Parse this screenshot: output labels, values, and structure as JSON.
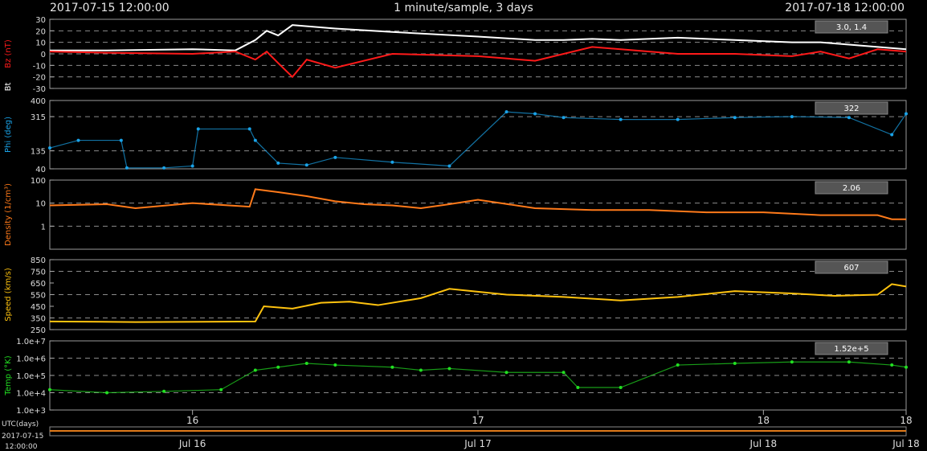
{
  "header": {
    "start": "2017-07-15 12:00:00",
    "title": "1 minute/sample, 3 days",
    "end": "2017-07-18 12:00:00"
  },
  "footer": {
    "utc_label": "UTC(days)",
    "start_date": "2017-07-15",
    "start_time": "12:00:00"
  },
  "chart_data": [
    {
      "type": "line",
      "ylabel": "Bz (nT)",
      "ylabel2": "Bt",
      "color": "#ff1a1a",
      "color2": "#ffffff",
      "value_box": "3.0, 1.4",
      "yticks": [
        "30",
        "20",
        "10",
        "0",
        "-10",
        "-20",
        "-30"
      ],
      "ylim": [
        -30,
        30
      ],
      "dashed": [
        -20,
        -10,
        0,
        10,
        20
      ],
      "series": [
        {
          "name": "Bt",
          "color": "#ffffff",
          "x": [
            0,
            0.2,
            0.5,
            0.65,
            0.72,
            0.76,
            0.8,
            0.85,
            0.9,
            1.0,
            1.2,
            1.5,
            1.7,
            1.8,
            1.9,
            2.0,
            2.2,
            2.4,
            2.6,
            2.7,
            2.8,
            2.9,
            3.0
          ],
          "y": [
            3,
            3,
            4,
            3,
            12,
            20,
            16,
            25,
            24,
            22,
            19,
            15,
            12,
            12,
            13,
            12,
            14,
            12,
            10,
            10,
            8,
            6,
            4
          ]
        },
        {
          "name": "Bz",
          "color": "#ff1a1a",
          "x": [
            0,
            0.2,
            0.5,
            0.65,
            0.72,
            0.76,
            0.8,
            0.85,
            0.9,
            1.0,
            1.2,
            1.5,
            1.7,
            1.8,
            1.9,
            2.0,
            2.2,
            2.4,
            2.6,
            2.7,
            2.8,
            2.9,
            3.0
          ],
          "y": [
            2,
            1,
            0,
            2,
            -5,
            2,
            -8,
            -20,
            -5,
            -12,
            0,
            -2,
            -6,
            0,
            6,
            4,
            0,
            0,
            -2,
            2,
            -4,
            4,
            2
          ]
        }
      ]
    },
    {
      "type": "scatter",
      "ylabel": "Phi (deg)",
      "color": "#1aa3e8",
      "value_box": "322",
      "yticks": [
        "400",
        "315",
        "135",
        "40"
      ],
      "ylim": [
        40,
        400
      ],
      "tick_values": [
        400,
        315,
        135,
        40
      ],
      "dashed": [
        315,
        135
      ],
      "series": [
        {
          "name": "Phi",
          "x": [
            0,
            0.1,
            0.25,
            0.27,
            0.4,
            0.5,
            0.52,
            0.7,
            0.72,
            0.8,
            0.9,
            1.0,
            1.2,
            1.4,
            1.6,
            1.7,
            1.8,
            2.0,
            2.2,
            2.4,
            2.6,
            2.8,
            2.95,
            3.0
          ],
          "y": [
            150,
            190,
            190,
            45,
            45,
            55,
            250,
            250,
            190,
            70,
            60,
            100,
            75,
            55,
            340,
            330,
            310,
            300,
            300,
            310,
            315,
            310,
            220,
            330
          ]
        }
      ]
    },
    {
      "type": "line",
      "ylabel": "Density (1/cm³)",
      "color": "#ff7a1a",
      "value_box": "2.06",
      "yticks": [
        "100",
        "10",
        "1"
      ],
      "scale": "log",
      "ylim": [
        0.1,
        100
      ],
      "tick_values": [
        100,
        10,
        1
      ],
      "dashed": [
        10,
        1
      ],
      "series": [
        {
          "name": "Density",
          "x": [
            0,
            0.2,
            0.3,
            0.5,
            0.7,
            0.72,
            0.8,
            0.9,
            1.0,
            1.1,
            1.2,
            1.3,
            1.4,
            1.5,
            1.7,
            1.9,
            2.1,
            2.3,
            2.5,
            2.7,
            2.9,
            2.95,
            3.0
          ],
          "y": [
            8,
            9,
            6,
            10,
            7,
            40,
            30,
            20,
            12,
            9,
            8,
            6,
            9,
            14,
            6,
            5,
            5,
            4,
            4,
            3,
            3,
            2,
            2
          ]
        }
      ]
    },
    {
      "type": "line",
      "ylabel": "Speed (km/s)",
      "color": "#ffc30f",
      "value_box": "607",
      "yticks": [
        "850",
        "750",
        "650",
        "550",
        "450",
        "350",
        "250"
      ],
      "ylim": [
        250,
        850
      ],
      "dashed": [
        750,
        550,
        350
      ],
      "series": [
        {
          "name": "Speed",
          "x": [
            0,
            0.3,
            0.6,
            0.72,
            0.75,
            0.85,
            0.95,
            1.05,
            1.15,
            1.3,
            1.4,
            1.6,
            1.8,
            2.0,
            2.2,
            2.4,
            2.6,
            2.75,
            2.9,
            2.95,
            3.0
          ],
          "y": [
            320,
            315,
            318,
            320,
            450,
            430,
            480,
            490,
            460,
            520,
            600,
            550,
            530,
            500,
            530,
            580,
            560,
            540,
            550,
            640,
            620
          ]
        }
      ]
    },
    {
      "type": "scatter",
      "ylabel": "Temp (°K)",
      "color": "#22e022",
      "value_box": "1.52e+5",
      "yticks": [
        "1.0e+7",
        "1.0e+6",
        "1.0e+5",
        "1.0e+4",
        "1.0e+3"
      ],
      "scale": "log",
      "ylim": [
        1000,
        10000000
      ],
      "tick_values": [
        10000000,
        1000000,
        100000,
        10000,
        1000
      ],
      "dashed": [
        1000000,
        100000,
        10000
      ],
      "series": [
        {
          "name": "Temp",
          "x": [
            0,
            0.2,
            0.4,
            0.6,
            0.72,
            0.8,
            0.9,
            1.0,
            1.2,
            1.3,
            1.4,
            1.6,
            1.8,
            1.85,
            2.0,
            2.2,
            2.4,
            2.6,
            2.8,
            2.95,
            3.0
          ],
          "y": [
            15000,
            10000,
            12000,
            15000,
            200000,
            300000,
            500000,
            400000,
            300000,
            200000,
            250000,
            150000,
            150000,
            20000,
            20000,
            400000,
            500000,
            600000,
            600000,
            400000,
            300000
          ]
        }
      ]
    }
  ],
  "xaxis": {
    "ticks": [
      {
        "x": 0.5,
        "label": "16"
      },
      {
        "x": 1.5,
        "label": "17"
      },
      {
        "x": 2.5,
        "label": "18"
      },
      {
        "x": 3.0,
        "label": "18"
      }
    ],
    "dates": [
      {
        "x": 0.5,
        "label": "Jul 16"
      },
      {
        "x": 1.5,
        "label": "Jul 17"
      },
      {
        "x": 2.5,
        "label": "Jul 18"
      },
      {
        "x": 3.0,
        "label": "Jul 18"
      }
    ],
    "xlim": [
      0,
      3
    ]
  }
}
